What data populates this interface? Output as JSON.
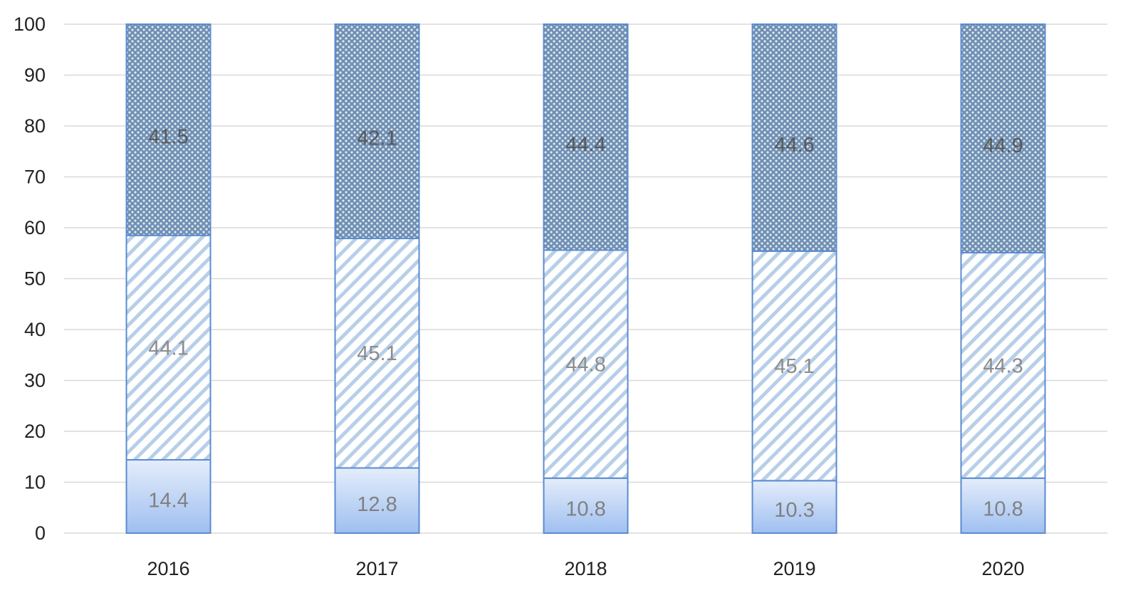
{
  "chart_data": {
    "type": "bar",
    "stacked": true,
    "title": "",
    "xlabel": "",
    "ylabel": "",
    "categories": [
      "2016",
      "2017",
      "2018",
      "2019",
      "2020"
    ],
    "ylim": [
      0,
      100
    ],
    "yticks": [
      0,
      10,
      20,
      30,
      40,
      50,
      60,
      70,
      80,
      90,
      100
    ],
    "grid": true,
    "legend": "none",
    "series": [
      {
        "values": [
          14.4,
          12.8,
          10.8,
          10.3,
          10.8
        ],
        "fill": "gradient",
        "color": "#bcd3f5",
        "label_color": "#808080"
      },
      {
        "values": [
          44.1,
          45.1,
          44.8,
          45.1,
          44.3
        ],
        "fill": "diagonal-stripes",
        "color": "#b7cfe8",
        "label_color": "#8c8c8c"
      },
      {
        "values": [
          41.5,
          42.1,
          44.4,
          44.6,
          44.9
        ],
        "fill": "crosshatch-dots",
        "color": "#7f9fc0",
        "label_color": "#595959"
      }
    ],
    "bar_border_color": "#5b8bd0",
    "grid_color": "#d9d9d9"
  }
}
